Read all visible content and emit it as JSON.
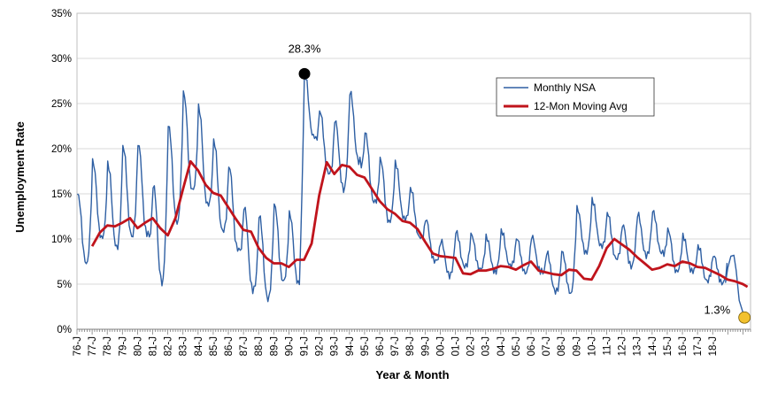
{
  "chart_data": {
    "type": "line",
    "xlabel": "Year & Month",
    "ylabel": "Unemployment Rate",
    "ylim": [
      0,
      35
    ],
    "y_ticks": [
      "0%",
      "5%",
      "10%",
      "15%",
      "20%",
      "25%",
      "30%",
      "35%"
    ],
    "x_tick_labels": [
      "76-J",
      "77-J",
      "78-J",
      "79-J",
      "80-J",
      "81-J",
      "82-J",
      "83-J",
      "84-J",
      "85-J",
      "86-J",
      "87-J",
      "88-J",
      "89-J",
      "90-J",
      "91-J",
      "92-J",
      "93-J",
      "94-J",
      "95-J",
      "96-J",
      "97-J",
      "98-J",
      "99-J",
      "00-J",
      "01-J",
      "02-J",
      "03-J",
      "04-J",
      "05-J",
      "06-J",
      "07-J",
      "08-J",
      "09-J",
      "10-J",
      "11-J",
      "12-J",
      "13-J",
      "14-J",
      "15-J",
      "16-J",
      "17-J",
      "18-J"
    ],
    "x_start_year": 1976,
    "grid": "horizontal",
    "legend_position": "top-right",
    "series": [
      {
        "name": "Monthly NSA",
        "color": "#2e5fa3",
        "amplitude": [
          5,
          5.5,
          6,
          6.5,
          6.5,
          7,
          7,
          7,
          7,
          6.5,
          6,
          6,
          6,
          5.5,
          5,
          4.5,
          4.5,
          5,
          5,
          5,
          4.5,
          4,
          3.5,
          3,
          2.5,
          2.5,
          2.5,
          2.5,
          2.5,
          2.5,
          2.5,
          2.8,
          3,
          3.2,
          3.3,
          3.3,
          3,
          3,
          3,
          3,
          2.5,
          2.5,
          2
        ],
        "annual_peaks": [
          15.0,
          18.6,
          18.3,
          20.3,
          20.6,
          16.0,
          22.6,
          26.2,
          24.6,
          20.9,
          18.1,
          13.6,
          12.6,
          13.8,
          12.8,
          28.3,
          24.2,
          23.2,
          26.3,
          21.8,
          18.8,
          18.4,
          15.6,
          12.2,
          9.8,
          10.8,
          10.5,
          10.2,
          10.9,
          10.1,
          10.3,
          8.5,
          8.6,
          13.4,
          14.3,
          12.9,
          11.6,
          12.8,
          13.1,
          11.0,
          10.3,
          9.2,
          8.2
        ]
      },
      {
        "name": "12-Mon Moving Avg",
        "color": "#c0141c",
        "values": [
          [
            1977.0,
            9.2
          ],
          [
            1977.5,
            10.7
          ],
          [
            1978.0,
            11.5
          ],
          [
            1978.5,
            11.4
          ],
          [
            1979.0,
            11.8
          ],
          [
            1979.5,
            12.3
          ],
          [
            1980.0,
            11.2
          ],
          [
            1980.5,
            11.8
          ],
          [
            1981.0,
            12.3
          ],
          [
            1981.5,
            11.2
          ],
          [
            1982.0,
            10.4
          ],
          [
            1982.5,
            12.3
          ],
          [
            1983.0,
            15.5
          ],
          [
            1983.5,
            18.6
          ],
          [
            1984.0,
            17.6
          ],
          [
            1984.5,
            16.0
          ],
          [
            1985.0,
            15.1
          ],
          [
            1985.5,
            14.8
          ],
          [
            1986.0,
            13.5
          ],
          [
            1986.5,
            12.2
          ],
          [
            1987.0,
            11.0
          ],
          [
            1987.5,
            10.8
          ],
          [
            1988.0,
            9.0
          ],
          [
            1988.5,
            7.9
          ],
          [
            1989.0,
            7.3
          ],
          [
            1989.5,
            7.3
          ],
          [
            1990.0,
            6.9
          ],
          [
            1990.5,
            7.7
          ],
          [
            1991.0,
            7.7
          ],
          [
            1991.5,
            9.5
          ],
          [
            1992.0,
            14.8
          ],
          [
            1992.5,
            18.5
          ],
          [
            1993.0,
            17.2
          ],
          [
            1993.5,
            18.2
          ],
          [
            1994.0,
            18.0
          ],
          [
            1994.5,
            17.1
          ],
          [
            1995.0,
            16.8
          ],
          [
            1995.5,
            15.5
          ],
          [
            1996.0,
            14.2
          ],
          [
            1996.5,
            13.3
          ],
          [
            1997.0,
            12.8
          ],
          [
            1997.5,
            12.0
          ],
          [
            1998.0,
            11.8
          ],
          [
            1998.5,
            11.1
          ],
          [
            1999.0,
            9.7
          ],
          [
            1999.5,
            8.4
          ],
          [
            2000.0,
            8.1
          ],
          [
            2000.5,
            8.0
          ],
          [
            2001.0,
            7.9
          ],
          [
            2001.5,
            6.2
          ],
          [
            2002.0,
            6.1
          ],
          [
            2002.5,
            6.5
          ],
          [
            2003.0,
            6.5
          ],
          [
            2003.5,
            6.7
          ],
          [
            2004.0,
            7.0
          ],
          [
            2004.5,
            6.9
          ],
          [
            2005.0,
            6.6
          ],
          [
            2005.5,
            7.1
          ],
          [
            2006.0,
            7.5
          ],
          [
            2006.5,
            6.5
          ],
          [
            2007.0,
            6.3
          ],
          [
            2007.5,
            6.1
          ],
          [
            2008.0,
            6.0
          ],
          [
            2008.5,
            6.6
          ],
          [
            2009.0,
            6.5
          ],
          [
            2009.5,
            5.6
          ],
          [
            2010.0,
            5.5
          ],
          [
            2010.5,
            7.0
          ],
          [
            2011.0,
            9.0
          ],
          [
            2011.5,
            10.0
          ],
          [
            2012.0,
            9.4
          ],
          [
            2012.5,
            8.8
          ],
          [
            2013.0,
            8.0
          ],
          [
            2013.5,
            7.3
          ],
          [
            2014.0,
            6.6
          ],
          [
            2014.5,
            6.8
          ],
          [
            2015.0,
            7.2
          ],
          [
            2015.5,
            7.0
          ],
          [
            2016.0,
            7.5
          ],
          [
            2016.5,
            7.3
          ],
          [
            2017.0,
            6.9
          ],
          [
            2017.5,
            6.8
          ],
          [
            2018.0,
            6.4
          ],
          [
            2018.5,
            6.0
          ],
          [
            2019.0,
            5.5
          ],
          [
            2019.5,
            5.3
          ],
          [
            2020.0,
            5.0
          ],
          [
            2020.3,
            4.7
          ]
        ]
      }
    ],
    "annotations": [
      {
        "text": "28.3%",
        "x": 1991.03,
        "y": 28.3,
        "marker_color": "#000000"
      },
      {
        "text": "1.3%",
        "x": 2020.1,
        "y": 1.3,
        "marker_color": "#f2c12e"
      }
    ]
  }
}
